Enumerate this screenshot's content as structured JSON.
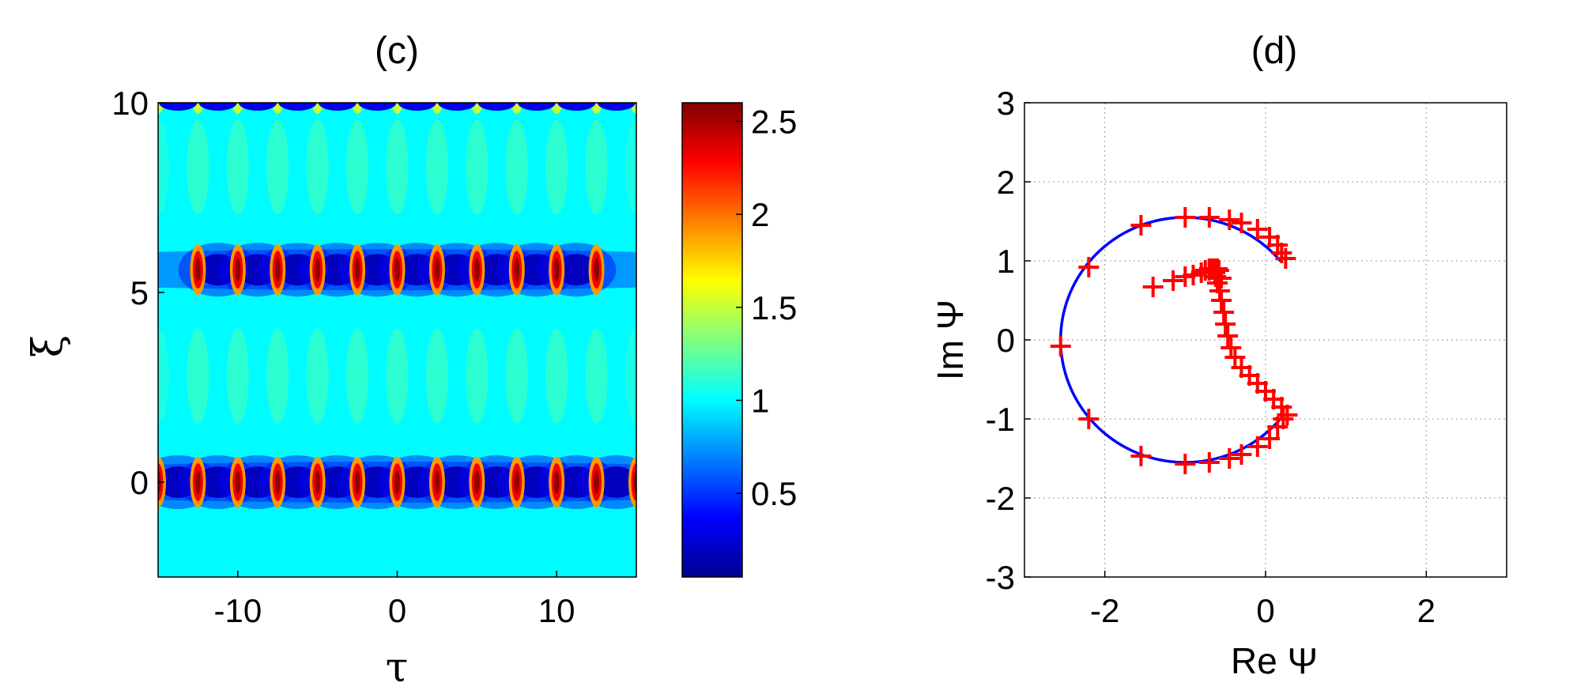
{
  "chart_data": [
    {
      "type": "heatmap",
      "title": "(c)",
      "xlabel": "τ",
      "ylabel": "ξ",
      "xlim": [
        -15,
        15
      ],
      "ylim": [
        -2.5,
        10
      ],
      "xticks": [
        -10,
        0,
        10
      ],
      "xtick_labels": [
        "-10",
        "0",
        "10"
      ],
      "yticks": [
        0,
        5,
        10
      ],
      "ytick_labels": [
        "0",
        "5",
        "10"
      ],
      "colorbar": {
        "range": [
          0.05,
          2.6
        ],
        "ticks": [
          0.5,
          1,
          1.5,
          2,
          2.5
        ],
        "tick_labels": [
          "0.5",
          "1",
          "1.5",
          "2",
          "2.5"
        ],
        "colormap": "jet"
      },
      "background_level": 1.0,
      "rows": [
        {
          "xi": 0,
          "peak_tau": [
            -15,
            -12.5,
            -10,
            -7.5,
            -5,
            -2.5,
            0,
            2.5,
            5,
            7.5,
            10,
            12.5,
            15
          ],
          "peak_value": 2.55,
          "min_value": 0.05
        },
        {
          "xi": 5.6,
          "peak_tau": [
            -12.5,
            -10,
            -7.5,
            -5,
            -2.5,
            0,
            2.5,
            5,
            7.5,
            10,
            12.5
          ],
          "peak_value": 2.55,
          "min_value": 0.05
        }
      ],
      "top_edge_xi": 10,
      "grid": false
    },
    {
      "type": "scatter",
      "title": "(d)",
      "xlabel": "Re Ψ",
      "ylabel": "Im Ψ",
      "xlim": [
        -3,
        3
      ],
      "ylim": [
        -3,
        3
      ],
      "xticks": [
        -2,
        0,
        2
      ],
      "xtick_labels": [
        "-2",
        "0",
        "2"
      ],
      "yticks": [
        -3,
        -2,
        -1,
        0,
        1,
        2,
        3
      ],
      "ytick_labels": [
        "-3",
        "-2",
        "-1",
        "0",
        "1",
        "2",
        "3"
      ],
      "grid": true,
      "series": [
        {
          "style": "line",
          "color": "#0000ff",
          "center": [
            -1.0,
            0.0
          ],
          "radius": 1.55,
          "angle_start_deg": -40,
          "angle_end_deg": 40,
          "direction": "counterclockwise-through-left"
        },
        {
          "style": "markers",
          "marker": "+",
          "color": "#ff0000",
          "x": [
            0.25,
            0.2,
            0.15,
            0.05,
            -0.1,
            -0.3,
            -0.45,
            -0.7,
            -1.0,
            -1.55,
            -2.2,
            -2.55,
            -2.2,
            -1.55,
            -1.0,
            -0.7,
            -0.45,
            -0.3,
            -0.1,
            0.05,
            0.15,
            0.22,
            0.27,
            0.2,
            0.1,
            0.0,
            -0.1,
            -0.2,
            -0.3,
            -0.38,
            -0.43,
            -0.47,
            -0.5,
            -0.52,
            -0.55,
            -0.57,
            -0.6,
            -0.62,
            -0.63,
            -0.65,
            -0.6,
            -0.55,
            -0.6,
            -0.7,
            -0.8,
            -0.9,
            -1.0,
            -1.15,
            -1.4,
            -0.58,
            -0.62,
            -0.66,
            -0.7,
            -0.75
          ],
          "y": [
            1.03,
            1.1,
            1.2,
            1.3,
            1.4,
            1.48,
            1.52,
            1.55,
            1.55,
            1.45,
            0.92,
            -0.08,
            -1.0,
            -1.47,
            -1.57,
            -1.55,
            -1.5,
            -1.45,
            -1.35,
            -1.25,
            -1.1,
            -1.0,
            -0.95,
            -0.85,
            -0.75,
            -0.65,
            -0.55,
            -0.45,
            -0.35,
            -0.22,
            -0.1,
            0.05,
            0.2,
            0.35,
            0.5,
            0.62,
            0.72,
            0.8,
            0.85,
            0.9,
            0.88,
            0.78,
            0.9,
            0.88,
            0.85,
            0.82,
            0.8,
            0.75,
            0.67,
            0.88,
            0.9,
            0.9,
            0.9,
            0.88
          ]
        }
      ]
    }
  ]
}
